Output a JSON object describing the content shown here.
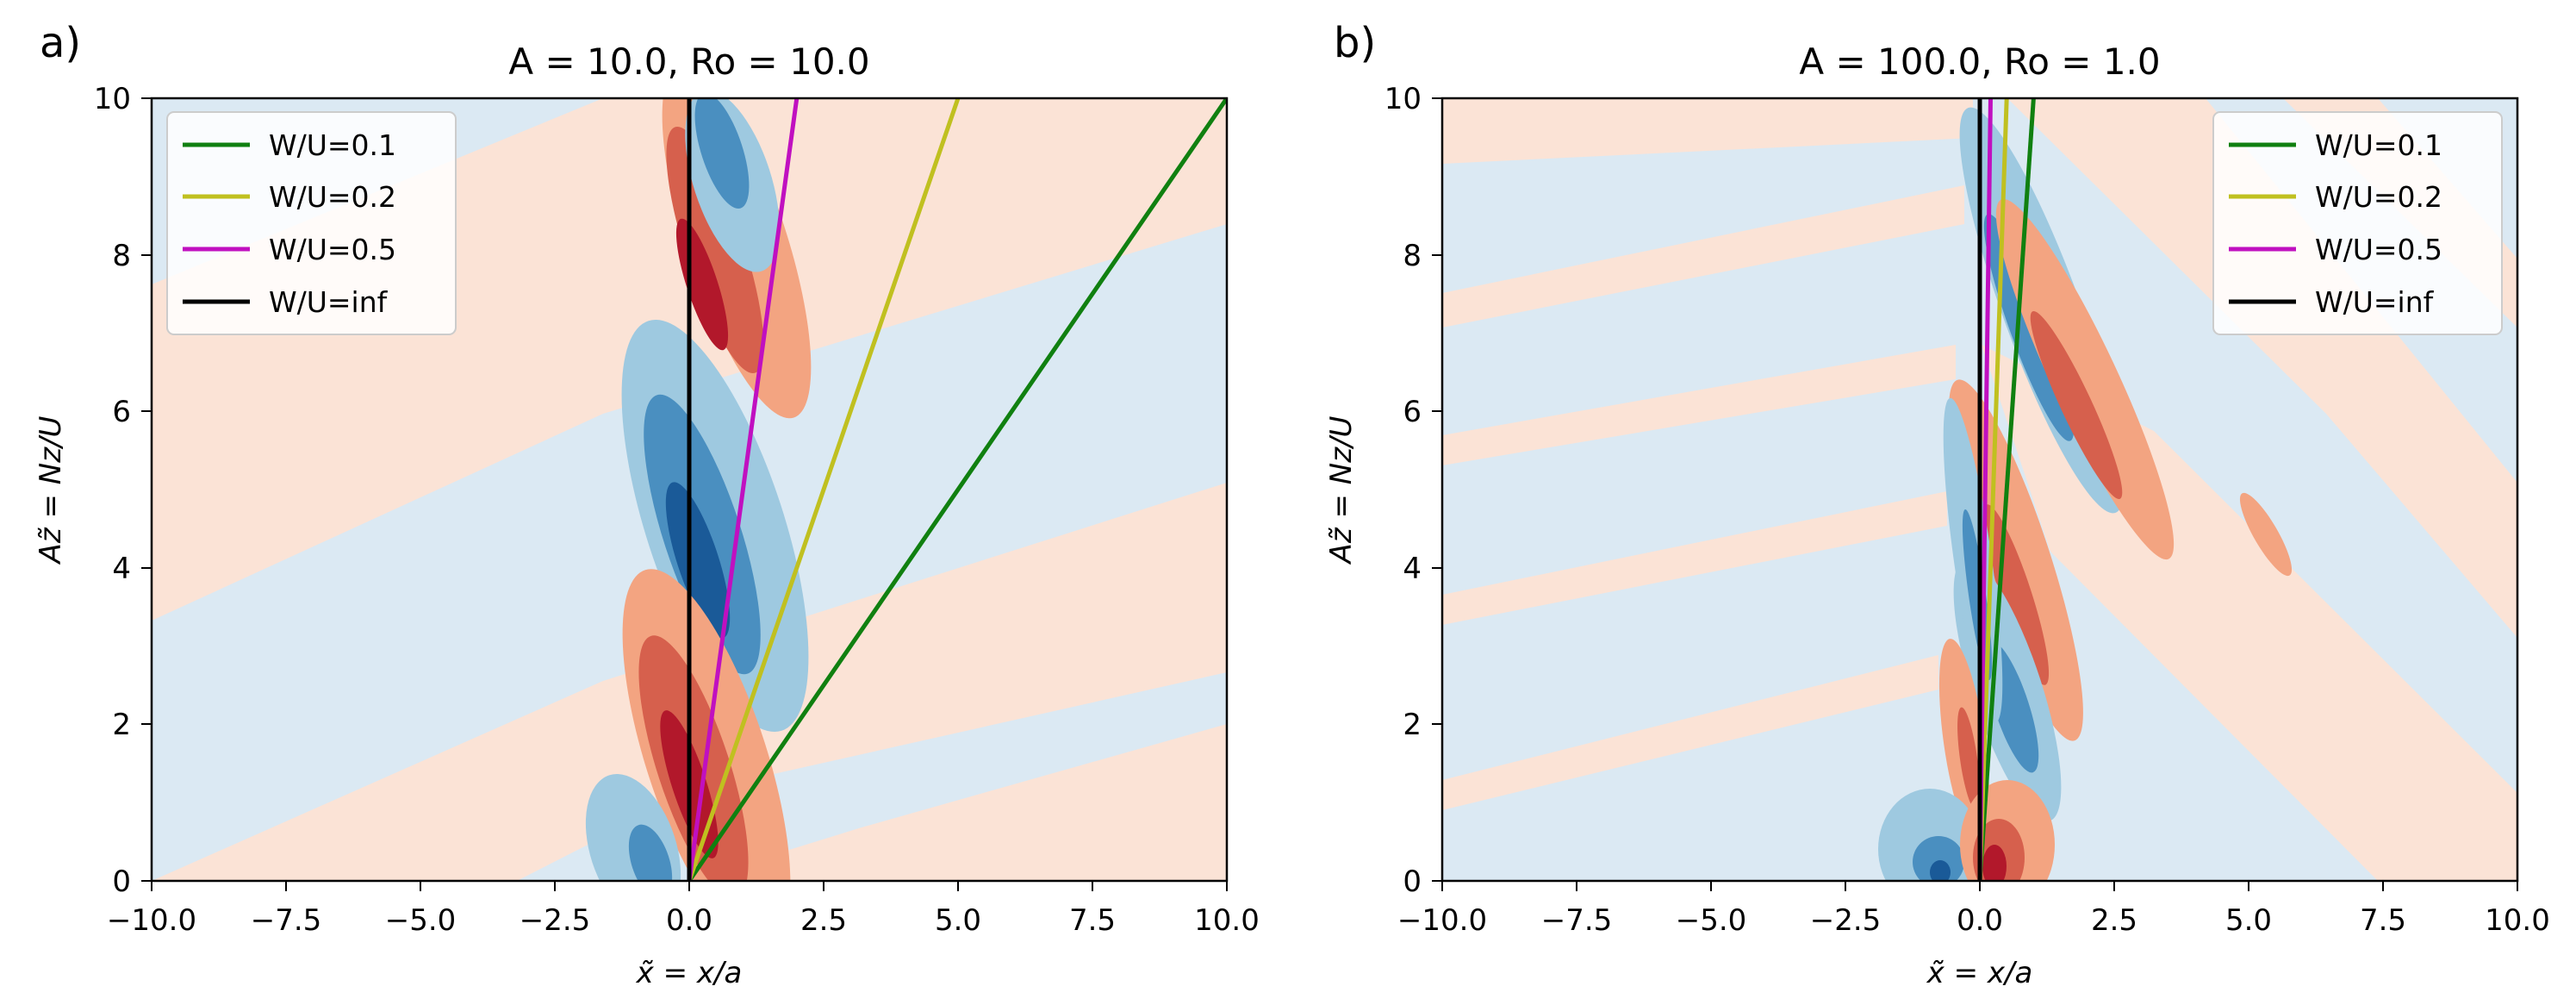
{
  "chart_data": [
    {
      "type": "contour",
      "panel_label": "a)",
      "title": "A = 10.0, Ro = 10.0",
      "xlabel": "x̃ = x/a",
      "ylabel": "Az̃ = Nz/U",
      "xlim": [
        -10,
        10
      ],
      "ylim": [
        0,
        10
      ],
      "xticks": [
        -10,
        -7.5,
        -5,
        -2.5,
        0,
        2.5,
        5,
        7.5,
        10
      ],
      "xtick_labels": [
        "−10.0",
        "−7.5",
        "−5.0",
        "−2.5",
        "0.0",
        "2.5",
        "5.0",
        "7.5",
        "10.0"
      ],
      "yticks": [
        0,
        2,
        4,
        6,
        8,
        10
      ],
      "ytick_labels": [
        "0",
        "2",
        "4",
        "6",
        "8",
        "10"
      ],
      "legend_position": "top-left",
      "series": [
        {
          "name": "W/U=0.1",
          "color": "#108010",
          "x": [
            0,
            10
          ],
          "y": [
            0,
            10
          ]
        },
        {
          "name": "W/U=0.2",
          "color": "#c0c020",
          "x": [
            0,
            5
          ],
          "y": [
            0,
            10
          ]
        },
        {
          "name": "W/U=0.5",
          "color": "#c010c0",
          "x": [
            0,
            2
          ],
          "y": [
            0,
            10
          ]
        },
        {
          "name": "W/U=inf",
          "color": "#000000",
          "x": [
            0,
            0
          ],
          "y": [
            0,
            10
          ]
        }
      ]
    },
    {
      "type": "contour",
      "panel_label": "b)",
      "title": "A = 100.0, Ro = 1.0",
      "xlabel": "x̃ = x/a",
      "ylabel": "Az̃ = Nz/U",
      "xlim": [
        -10,
        10
      ],
      "ylim": [
        0,
        10
      ],
      "xticks": [
        -10,
        -7.5,
        -5,
        -2.5,
        0,
        2.5,
        5,
        7.5,
        10
      ],
      "xtick_labels": [
        "−10.0",
        "−7.5",
        "−5.0",
        "−2.5",
        "0.0",
        "2.5",
        "5.0",
        "7.5",
        "10.0"
      ],
      "yticks": [
        0,
        2,
        4,
        6,
        8,
        10
      ],
      "ytick_labels": [
        "0",
        "2",
        "4",
        "6",
        "8",
        "10"
      ],
      "legend_position": "top-right",
      "series": [
        {
          "name": "W/U=0.1",
          "color": "#108010",
          "x": [
            0,
            1
          ],
          "y": [
            0,
            10
          ]
        },
        {
          "name": "W/U=0.2",
          "color": "#c0c020",
          "x": [
            0,
            0.5
          ],
          "y": [
            0,
            10
          ]
        },
        {
          "name": "W/U=0.5",
          "color": "#c010c0",
          "x": [
            0,
            0.2
          ],
          "y": [
            0,
            10
          ]
        },
        {
          "name": "W/U=inf",
          "color": "#000000",
          "x": [
            0,
            0
          ],
          "y": [
            0,
            10
          ]
        }
      ]
    }
  ],
  "colors": {
    "background_neg": "#dbe9f3",
    "background_pos": "#fbe3d6",
    "blue_levels": [
      "#9ec9e0",
      "#4a8fc0",
      "#1a5a98",
      "#0b2f5e"
    ],
    "red_levels": [
      "#f3a481",
      "#d6604d",
      "#b2182b",
      "#67001f"
    ]
  }
}
